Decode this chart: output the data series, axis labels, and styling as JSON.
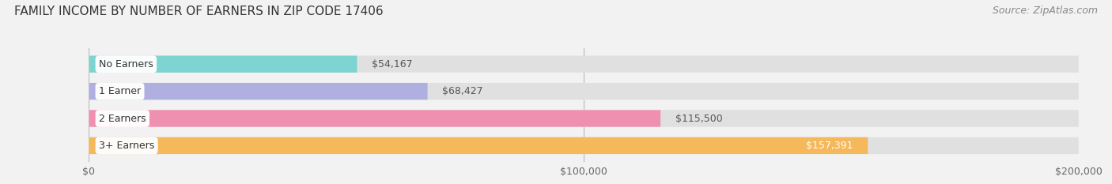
{
  "title": "FAMILY INCOME BY NUMBER OF EARNERS IN ZIP CODE 17406",
  "source": "Source: ZipAtlas.com",
  "categories": [
    "No Earners",
    "1 Earner",
    "2 Earners",
    "3+ Earners"
  ],
  "values": [
    54167,
    68427,
    115500,
    157391
  ],
  "bar_colors": [
    "#7dd4d0",
    "#b0b0e0",
    "#f090b0",
    "#f5b85a"
  ],
  "label_values": [
    "$54,167",
    "$68,427",
    "$115,500",
    "$157,391"
  ],
  "xlim": [
    0,
    200000
  ],
  "xticks": [
    0,
    100000,
    200000
  ],
  "xtick_labels": [
    "$0",
    "$100,000",
    "$200,000"
  ],
  "background_color": "#f2f2f2",
  "bar_background": "#e0e0e0",
  "title_fontsize": 11,
  "source_fontsize": 9,
  "label_fontsize": 9,
  "category_fontsize": 9
}
